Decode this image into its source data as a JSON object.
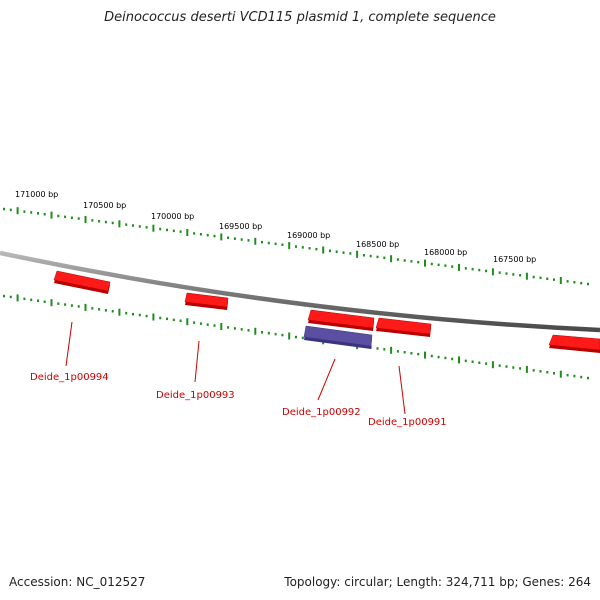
{
  "title": "Deinococcus deserti VCD115 plasmid 1, complete sequence",
  "footer": {
    "accession": "Accession: NC_012527",
    "summary": "Topology: circular; Length: 324,711 bp; Genes: 264"
  },
  "colors": {
    "backbone": "#7f7f7f",
    "ticks": "#1e8c1e",
    "gene_forward": "#ff1a1a",
    "gene_reverse": "#5a4fa0",
    "gene_label": "#cc0000"
  },
  "position_labels": [
    "171000 bp",
    "170500 bp",
    "170000 bp",
    "169500 bp",
    "169000 bp",
    "168500 bp",
    "168000 bp",
    "167500 bp"
  ],
  "genes": [
    {
      "name": "Deide_1p00994",
      "strand": "+"
    },
    {
      "name": "Deide_1p00993",
      "strand": "+"
    },
    {
      "name": "",
      "strand": "+"
    },
    {
      "name": "Deide_1p00992",
      "strand": "-"
    },
    {
      "name": "Deide_1p00991",
      "strand": "+"
    },
    {
      "name": "",
      "strand": "+"
    }
  ]
}
